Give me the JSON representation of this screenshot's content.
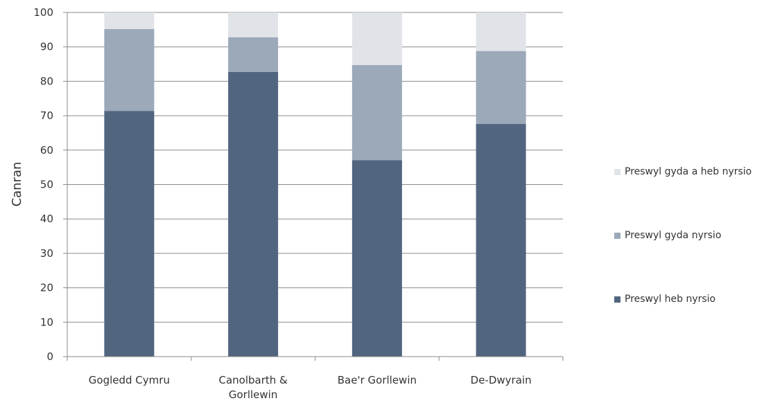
{
  "chart_data": {
    "type": "bar",
    "stacked": true,
    "title": "",
    "xlabel": "",
    "ylabel": "Canran",
    "ylim": [
      0,
      100
    ],
    "yticks": [
      0,
      10,
      20,
      30,
      40,
      50,
      60,
      70,
      80,
      90,
      100
    ],
    "grid": true,
    "legend_position": "right",
    "categories": [
      [
        "Gogledd Cymru"
      ],
      [
        "Canolbarth &",
        "Gorllewin"
      ],
      [
        "Bae'r Gorllewin"
      ],
      [
        "De-Dwyrain"
      ]
    ],
    "series": [
      {
        "name": "Preswyl heb nyrsio",
        "color": "#51657f",
        "values": [
          71.4,
          82.7,
          57.1,
          67.6
        ]
      },
      {
        "name": "Preswyl gyda nyrsio",
        "color": "#9ba9b9",
        "values": [
          23.8,
          10.1,
          27.6,
          21.2
        ]
      },
      {
        "name": "Preswyl gyda a heb nyrsio",
        "color": "#e0e3e8",
        "values": [
          4.8,
          7.2,
          15.3,
          11.2
        ]
      }
    ]
  }
}
